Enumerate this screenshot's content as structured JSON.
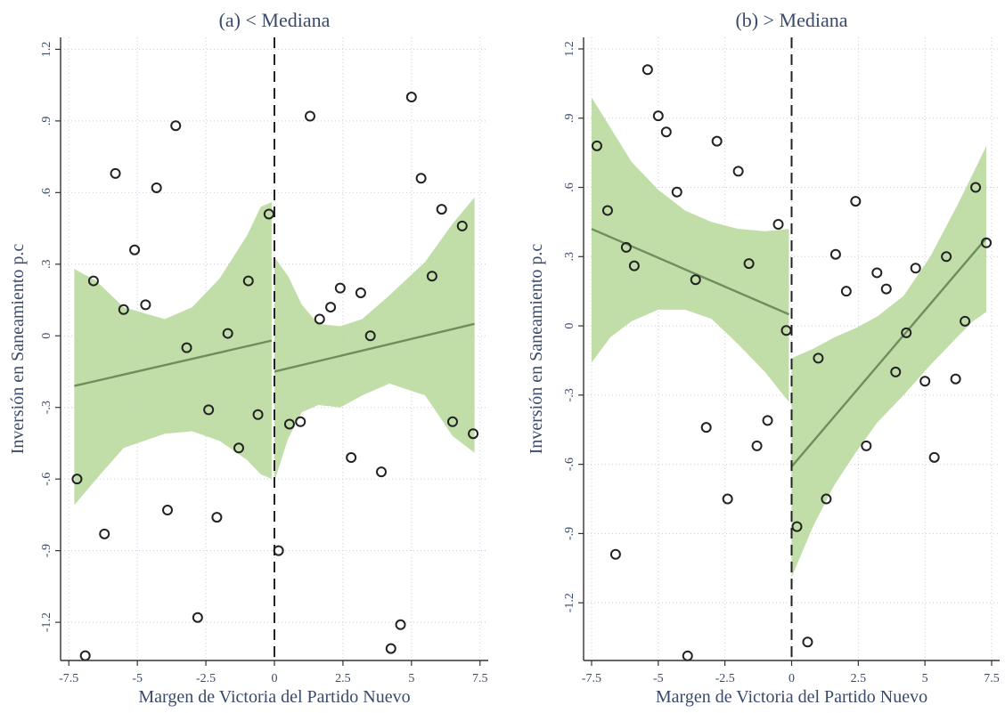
{
  "colors": {
    "band": "#b6d89a",
    "fit": "#6e8f5c",
    "marker": "#222222",
    "text": "#3a4a6b"
  },
  "chart_data": [
    {
      "type": "scatter",
      "title": "(a) < Mediana",
      "xlabel": "Margen de Victoria del Partido Nuevo",
      "ylabel": "Inversión en Saneamiento p.c",
      "xlim": [
        -7.8,
        7.8
      ],
      "ylim": [
        -1.36,
        1.25
      ],
      "cutoff": 0,
      "grid": true,
      "xticks": [
        -7.5,
        -5,
        -2.5,
        0,
        2.5,
        5,
        7.5
      ],
      "xtick_labels": [
        "-7.5",
        "-5",
        "-2.5",
        "0",
        "2.5",
        "5",
        "7.5"
      ],
      "yticks": [
        1.2,
        0.9,
        0.6,
        0.3,
        0,
        -0.3,
        -0.6,
        -0.9,
        -1.2
      ],
      "ytick_labels": [
        "1.2",
        ".9",
        ".6",
        ".3",
        "0",
        "-.3",
        "-.6",
        "-.9",
        "-1.2"
      ],
      "points": [
        [
          -7.2,
          -0.6
        ],
        [
          -6.9,
          -1.34
        ],
        [
          -6.6,
          0.23
        ],
        [
          -6.2,
          -0.83
        ],
        [
          -5.8,
          0.68
        ],
        [
          -5.5,
          0.11
        ],
        [
          -5.1,
          0.36
        ],
        [
          -4.7,
          0.13
        ],
        [
          -4.3,
          0.62
        ],
        [
          -3.9,
          -0.73
        ],
        [
          -3.6,
          0.88
        ],
        [
          -3.2,
          -0.05
        ],
        [
          -2.8,
          -1.18
        ],
        [
          -2.4,
          -0.31
        ],
        [
          -2.1,
          -0.76
        ],
        [
          -1.7,
          0.01
        ],
        [
          -1.3,
          -0.47
        ],
        [
          -0.95,
          0.23
        ],
        [
          -0.6,
          -0.33
        ],
        [
          -0.2,
          0.51
        ],
        [
          0.15,
          -0.9
        ],
        [
          0.55,
          -0.37
        ],
        [
          0.95,
          -0.36
        ],
        [
          1.3,
          0.92
        ],
        [
          1.65,
          0.07
        ],
        [
          2.05,
          0.12
        ],
        [
          2.4,
          0.2
        ],
        [
          2.8,
          -0.51
        ],
        [
          3.15,
          0.18
        ],
        [
          3.5,
          0.0
        ],
        [
          3.9,
          -0.57
        ],
        [
          4.25,
          -1.31
        ],
        [
          4.6,
          -1.21
        ],
        [
          5.0,
          1.0
        ],
        [
          5.35,
          0.66
        ],
        [
          5.75,
          0.25
        ],
        [
          6.1,
          0.53
        ],
        [
          6.5,
          -0.36
        ],
        [
          6.85,
          0.46
        ],
        [
          7.25,
          -0.41
        ]
      ],
      "segments": [
        {
          "side": "left",
          "fit": [
            [
              -7.3,
              -0.21
            ],
            [
              -0.1,
              -0.02
            ]
          ],
          "ci_upper": [
            [
              -7.3,
              0.28
            ],
            [
              -6.5,
              0.23
            ],
            [
              -5.5,
              0.12
            ],
            [
              -4.0,
              0.07
            ],
            [
              -3.0,
              0.12
            ],
            [
              -2.0,
              0.24
            ],
            [
              -1.0,
              0.42
            ],
            [
              -0.5,
              0.54
            ],
            [
              -0.1,
              0.56
            ]
          ],
          "ci_lower": [
            [
              -7.3,
              -0.71
            ],
            [
              -6.5,
              -0.6
            ],
            [
              -5.5,
              -0.47
            ],
            [
              -4.0,
              -0.41
            ],
            [
              -3.0,
              -0.4
            ],
            [
              -2.0,
              -0.44
            ],
            [
              -1.0,
              -0.52
            ],
            [
              -0.5,
              -0.58
            ],
            [
              -0.1,
              -0.6
            ]
          ]
        },
        {
          "side": "right",
          "fit": [
            [
              0.0,
              -0.15
            ],
            [
              7.3,
              0.05
            ]
          ],
          "ci_upper": [
            [
              0.0,
              0.33
            ],
            [
              0.5,
              0.25
            ],
            [
              1.0,
              0.13
            ],
            [
              1.6,
              0.05
            ],
            [
              2.4,
              0.04
            ],
            [
              3.2,
              0.07
            ],
            [
              4.2,
              0.17
            ],
            [
              5.5,
              0.31
            ],
            [
              6.5,
              0.47
            ],
            [
              7.3,
              0.58
            ]
          ],
          "ci_lower": [
            [
              0.0,
              -0.61
            ],
            [
              0.5,
              -0.43
            ],
            [
              1.0,
              -0.32
            ],
            [
              1.6,
              -0.29
            ],
            [
              2.4,
              -0.3
            ],
            [
              3.2,
              -0.25
            ],
            [
              4.2,
              -0.2
            ],
            [
              5.5,
              -0.25
            ],
            [
              6.5,
              -0.42
            ],
            [
              7.3,
              -0.49
            ]
          ]
        }
      ]
    },
    {
      "type": "scatter",
      "title": "(b) > Mediana",
      "xlabel": "Margen de Victoria del Partido Nuevo",
      "ylabel": "Inversión en Saneamiento p.c",
      "xlim": [
        -7.8,
        7.8
      ],
      "ylim": [
        -1.45,
        1.25
      ],
      "cutoff": 0,
      "grid": true,
      "xticks": [
        -7.5,
        -5,
        -2.5,
        0,
        2.5,
        5,
        7.5
      ],
      "xtick_labels": [
        "-7.5",
        "-5",
        "-2.5",
        "0",
        "2.5",
        "5",
        "7.5"
      ],
      "yticks": [
        1.2,
        0.9,
        0.6,
        0.3,
        0,
        -0.3,
        -0.6,
        -0.9,
        -1.2
      ],
      "ytick_labels": [
        "1.2",
        ".9",
        ".6",
        ".3",
        "0",
        "-.3",
        "-.6",
        "-.9",
        "-1.2"
      ],
      "points": [
        [
          -7.3,
          0.78
        ],
        [
          -6.9,
          0.5
        ],
        [
          -6.6,
          -0.99
        ],
        [
          -6.2,
          0.34
        ],
        [
          -5.9,
          0.26
        ],
        [
          -5.4,
          1.11
        ],
        [
          -5.0,
          0.91
        ],
        [
          -4.7,
          0.84
        ],
        [
          -4.3,
          0.58
        ],
        [
          -3.9,
          -1.43
        ],
        [
          -3.6,
          0.2
        ],
        [
          -3.2,
          -0.44
        ],
        [
          -2.8,
          0.8
        ],
        [
          -2.4,
          -0.75
        ],
        [
          -2.0,
          0.67
        ],
        [
          -1.6,
          0.27
        ],
        [
          -1.3,
          -0.52
        ],
        [
          -0.9,
          -0.41
        ],
        [
          -0.5,
          0.44
        ],
        [
          -0.2,
          -0.02
        ],
        [
          0.2,
          -0.87
        ],
        [
          0.6,
          -1.37
        ],
        [
          1.0,
          -0.14
        ],
        [
          1.3,
          -0.75
        ],
        [
          1.65,
          0.31
        ],
        [
          2.05,
          0.15
        ],
        [
          2.4,
          0.54
        ],
        [
          2.8,
          -0.52
        ],
        [
          3.2,
          0.23
        ],
        [
          3.55,
          0.16
        ],
        [
          3.9,
          -0.2
        ],
        [
          4.3,
          -0.03
        ],
        [
          4.65,
          0.25
        ],
        [
          5.0,
          -0.24
        ],
        [
          5.35,
          -0.57
        ],
        [
          5.8,
          0.3
        ],
        [
          6.15,
          -0.23
        ],
        [
          6.5,
          0.02
        ],
        [
          6.9,
          0.6
        ],
        [
          7.3,
          0.36
        ]
      ],
      "segments": [
        {
          "side": "left",
          "fit": [
            [
              -7.5,
              0.42
            ],
            [
              -0.1,
              0.05
            ]
          ],
          "ci_upper": [
            [
              -7.5,
              0.99
            ],
            [
              -6.8,
              0.86
            ],
            [
              -6.0,
              0.71
            ],
            [
              -5.0,
              0.59
            ],
            [
              -4.0,
              0.5
            ],
            [
              -3.0,
              0.45
            ],
            [
              -2.0,
              0.42
            ],
            [
              -1.0,
              0.41
            ],
            [
              -0.1,
              0.42
            ]
          ],
          "ci_lower": [
            [
              -7.5,
              -0.16
            ],
            [
              -6.8,
              -0.05
            ],
            [
              -6.0,
              0.02
            ],
            [
              -5.0,
              0.07
            ],
            [
              -4.0,
              0.07
            ],
            [
              -3.0,
              0.03
            ],
            [
              -2.0,
              -0.08
            ],
            [
              -1.0,
              -0.2
            ],
            [
              -0.1,
              -0.33
            ]
          ]
        },
        {
          "side": "right",
          "fit": [
            [
              0.0,
              -0.61
            ],
            [
              7.3,
              0.38
            ]
          ],
          "ci_upper": [
            [
              0.0,
              -0.14
            ],
            [
              0.8,
              -0.1
            ],
            [
              1.6,
              -0.05
            ],
            [
              2.4,
              -0.01
            ],
            [
              3.2,
              0.04
            ],
            [
              4.2,
              0.13
            ],
            [
              5.2,
              0.3
            ],
            [
              6.2,
              0.52
            ],
            [
              6.8,
              0.66
            ],
            [
              7.3,
              0.78
            ]
          ],
          "ci_lower": [
            [
              0.0,
              -1.09
            ],
            [
              0.8,
              -0.87
            ],
            [
              1.6,
              -0.69
            ],
            [
              2.4,
              -0.55
            ],
            [
              3.2,
              -0.42
            ],
            [
              4.2,
              -0.3
            ],
            [
              5.2,
              -0.17
            ],
            [
              6.2,
              -0.05
            ],
            [
              6.8,
              0.02
            ],
            [
              7.3,
              0.06
            ]
          ]
        }
      ]
    }
  ]
}
